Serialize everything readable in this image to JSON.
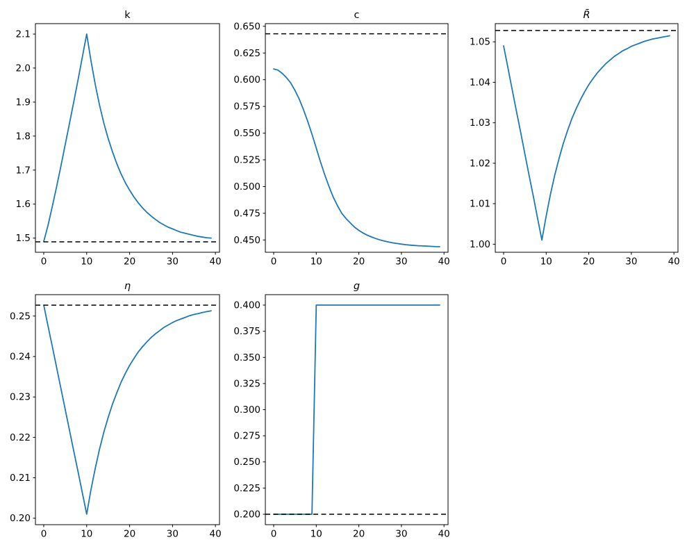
{
  "figure": {
    "background": "#ffffff",
    "axes_color": "#000000",
    "series_color": "#1f77b4",
    "dashed_color": "#000000"
  },
  "chart_data": [
    {
      "id": "k",
      "type": "line",
      "title": "k",
      "title_italic": false,
      "grid": false,
      "legend": null,
      "xlim": [
        -1.95,
        40.95
      ],
      "ylim": [
        1.4584,
        2.1306
      ],
      "xticks": [
        0,
        10,
        20,
        30,
        40
      ],
      "xtick_labels": [
        "0",
        "10",
        "20",
        "30",
        "40"
      ],
      "yticks": [
        1.5,
        1.6,
        1.7,
        1.8,
        1.9,
        2.0,
        2.1
      ],
      "ytick_labels": [
        "1.5",
        "1.6",
        "1.7",
        "1.8",
        "1.9",
        "2.0",
        "2.1"
      ],
      "dashed_y": 1.489,
      "x": [
        0,
        1,
        2,
        3,
        4,
        5,
        6,
        7,
        8,
        9,
        10,
        11,
        12,
        13,
        14,
        15,
        16,
        17,
        18,
        19,
        20,
        21,
        22,
        23,
        24,
        25,
        26,
        27,
        28,
        29,
        30,
        31,
        32,
        33,
        34,
        35,
        36,
        37,
        38,
        39
      ],
      "values": [
        1.4905,
        1.538,
        1.594,
        1.652,
        1.713,
        1.775,
        1.838,
        1.902,
        1.967,
        2.033,
        2.1,
        2.021,
        1.951,
        1.891,
        1.838,
        1.793,
        1.754,
        1.719,
        1.689,
        1.663,
        1.641,
        1.621,
        1.604,
        1.589,
        1.576,
        1.565,
        1.555,
        1.546,
        1.539,
        1.532,
        1.527,
        1.522,
        1.517,
        1.514,
        1.511,
        1.508,
        1.505,
        1.503,
        1.501,
        1.5
      ]
    },
    {
      "id": "c",
      "type": "line",
      "title": "c",
      "title_italic": false,
      "grid": false,
      "legend": null,
      "xlim": [
        -1.95,
        40.95
      ],
      "ylim": [
        0.4385,
        0.6525
      ],
      "xticks": [
        0,
        10,
        20,
        30,
        40
      ],
      "xtick_labels": [
        "0",
        "10",
        "20",
        "30",
        "40"
      ],
      "yticks": [
        0.45,
        0.475,
        0.5,
        0.525,
        0.55,
        0.575,
        0.6,
        0.625,
        0.65
      ],
      "ytick_labels": [
        "0.450",
        "0.475",
        "0.500",
        "0.525",
        "0.550",
        "0.575",
        "0.600",
        "0.625",
        "0.650"
      ],
      "dashed_y": 0.643,
      "x": [
        0,
        1,
        2,
        3,
        4,
        5,
        6,
        7,
        8,
        9,
        10,
        11,
        12,
        13,
        14,
        15,
        16,
        17,
        18,
        19,
        20,
        21,
        22,
        23,
        24,
        25,
        26,
        27,
        28,
        29,
        30,
        31,
        32,
        33,
        34,
        35,
        36,
        37,
        38,
        39
      ],
      "values": [
        0.61,
        0.609,
        0.606,
        0.602,
        0.597,
        0.59,
        0.582,
        0.572,
        0.561,
        0.549,
        0.536,
        0.523,
        0.511,
        0.5,
        0.49,
        0.482,
        0.475,
        0.47,
        0.466,
        0.462,
        0.459,
        0.4565,
        0.4545,
        0.4528,
        0.4513,
        0.45,
        0.449,
        0.4481,
        0.4473,
        0.4467,
        0.4461,
        0.4456,
        0.4452,
        0.4449,
        0.4446,
        0.4444,
        0.4442,
        0.444,
        0.4438,
        0.4437
      ]
    },
    {
      "id": "Rbar",
      "type": "line",
      "title": "R̄",
      "title_italic": true,
      "grid": false,
      "legend": null,
      "xlim": [
        -1.95,
        40.95
      ],
      "ylim": [
        0.998,
        1.0545
      ],
      "xticks": [
        0,
        10,
        20,
        30,
        40
      ],
      "xtick_labels": [
        "0",
        "10",
        "20",
        "30",
        "40"
      ],
      "yticks": [
        1.0,
        1.01,
        1.02,
        1.03,
        1.04,
        1.05
      ],
      "ytick_labels": [
        "1.00",
        "1.01",
        "1.02",
        "1.03",
        "1.04",
        "1.05"
      ],
      "dashed_y": 1.0528,
      "x": [
        0,
        1,
        2,
        3,
        4,
        5,
        6,
        7,
        8,
        9,
        10,
        11,
        12,
        13,
        14,
        15,
        16,
        17,
        18,
        19,
        20,
        21,
        22,
        23,
        24,
        25,
        26,
        27,
        28,
        29,
        30,
        31,
        32,
        33,
        34,
        35,
        36,
        37,
        38,
        39
      ],
      "values": [
        1.049,
        1.0437,
        1.0383,
        1.033,
        1.0277,
        1.0223,
        1.017,
        1.0117,
        1.0063,
        1.001,
        1.007,
        1.0123,
        1.017,
        1.0211,
        1.0248,
        1.028,
        1.0309,
        1.0334,
        1.0356,
        1.0376,
        1.0394,
        1.0409,
        1.0423,
        1.0435,
        1.0446,
        1.0455,
        1.0464,
        1.0471,
        1.0478,
        1.0483,
        1.0489,
        1.0493,
        1.0497,
        1.0501,
        1.0504,
        1.0507,
        1.0509,
        1.0511,
        1.0513,
        1.0515
      ]
    },
    {
      "id": "eta",
      "type": "line",
      "title": "η",
      "title_italic": true,
      "grid": false,
      "legend": null,
      "xlim": [
        -1.95,
        40.95
      ],
      "ylim": [
        0.1984,
        0.2553
      ],
      "xticks": [
        0,
        10,
        20,
        30,
        40
      ],
      "xtick_labels": [
        "0",
        "10",
        "20",
        "30",
        "40"
      ],
      "yticks": [
        0.2,
        0.21,
        0.22,
        0.23,
        0.24,
        0.25
      ],
      "ytick_labels": [
        "0.20",
        "0.21",
        "0.22",
        "0.23",
        "0.24",
        "0.25"
      ],
      "dashed_y": 0.2527,
      "x": [
        0,
        1,
        2,
        3,
        4,
        5,
        6,
        7,
        8,
        9,
        10,
        11,
        12,
        13,
        14,
        15,
        16,
        17,
        18,
        19,
        20,
        21,
        22,
        23,
        24,
        25,
        26,
        27,
        28,
        29,
        30,
        31,
        32,
        33,
        34,
        35,
        36,
        37,
        38,
        39
      ],
      "values": [
        0.2527,
        0.2475,
        0.2424,
        0.2372,
        0.232,
        0.2269,
        0.2217,
        0.2165,
        0.2114,
        0.2062,
        0.201,
        0.2071,
        0.2124,
        0.2171,
        0.2213,
        0.2249,
        0.2282,
        0.231,
        0.2336,
        0.2358,
        0.2378,
        0.2395,
        0.2411,
        0.2424,
        0.2436,
        0.2447,
        0.2456,
        0.2464,
        0.2472,
        0.2478,
        0.2484,
        0.2489,
        0.2493,
        0.2497,
        0.2501,
        0.2504,
        0.2506,
        0.2509,
        0.2511,
        0.2513
      ]
    },
    {
      "id": "g",
      "type": "line",
      "title": "g",
      "title_italic": true,
      "grid": false,
      "legend": null,
      "xlim": [
        -1.95,
        40.95
      ],
      "ylim": [
        0.19,
        0.41
      ],
      "xticks": [
        0,
        10,
        20,
        30,
        40
      ],
      "xtick_labels": [
        "0",
        "10",
        "20",
        "30",
        "40"
      ],
      "yticks": [
        0.2,
        0.225,
        0.25,
        0.275,
        0.3,
        0.325,
        0.35,
        0.375,
        0.4
      ],
      "ytick_labels": [
        "0.200",
        "0.225",
        "0.250",
        "0.275",
        "0.300",
        "0.325",
        "0.350",
        "0.375",
        "0.400"
      ],
      "dashed_y": 0.2,
      "x": [
        0,
        1,
        2,
        3,
        4,
        5,
        6,
        7,
        8,
        9,
        10,
        11,
        12,
        13,
        14,
        15,
        16,
        17,
        18,
        19,
        20,
        21,
        22,
        23,
        24,
        25,
        26,
        27,
        28,
        29,
        30,
        31,
        32,
        33,
        34,
        35,
        36,
        37,
        38,
        39
      ],
      "values": [
        0.2,
        0.2,
        0.2,
        0.2,
        0.2,
        0.2,
        0.2,
        0.2,
        0.2,
        0.2,
        0.4,
        0.4,
        0.4,
        0.4,
        0.4,
        0.4,
        0.4,
        0.4,
        0.4,
        0.4,
        0.4,
        0.4,
        0.4,
        0.4,
        0.4,
        0.4,
        0.4,
        0.4,
        0.4,
        0.4,
        0.4,
        0.4,
        0.4,
        0.4,
        0.4,
        0.4,
        0.4,
        0.4,
        0.4,
        0.4
      ]
    }
  ]
}
